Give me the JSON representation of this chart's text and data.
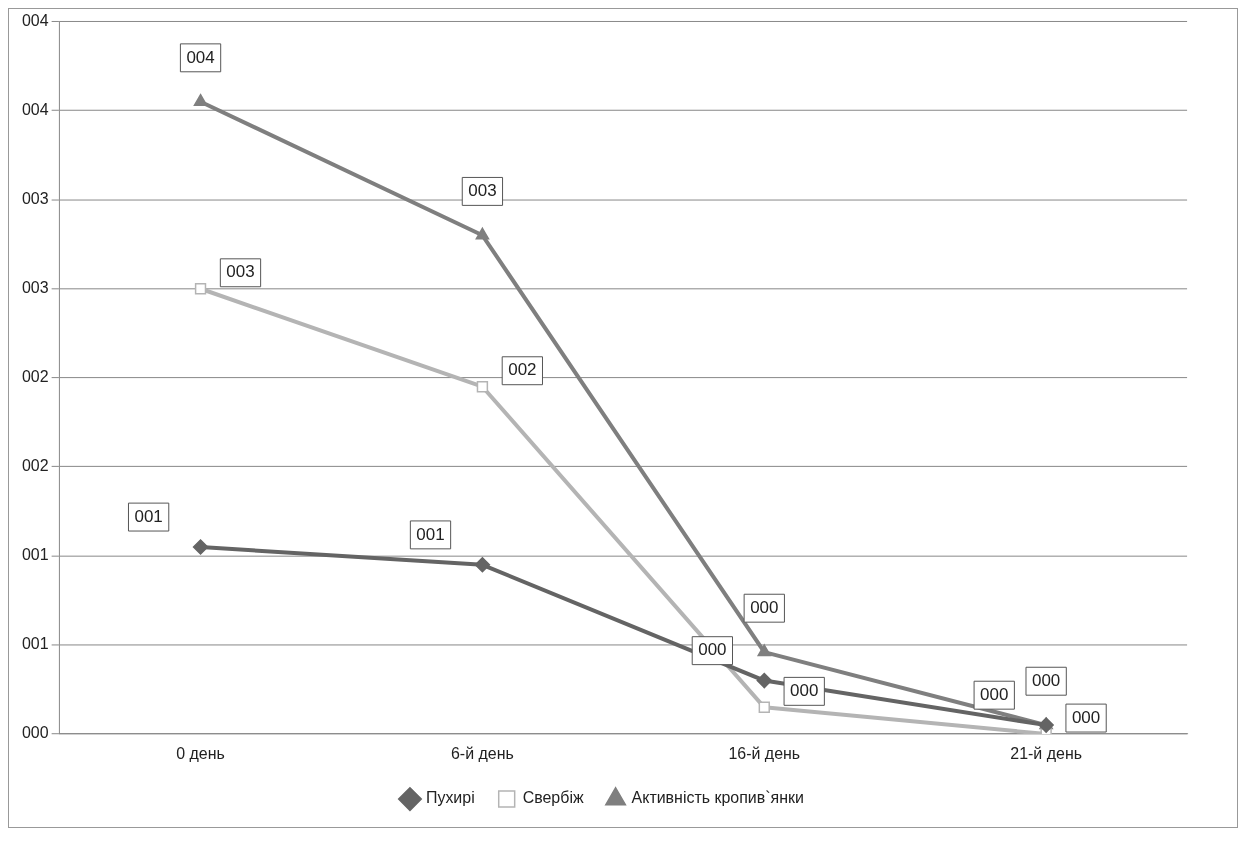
{
  "chart_data": {
    "type": "line",
    "categories": [
      "0 день",
      "6-й день",
      "16-й день",
      "21-й день"
    ],
    "series": [
      {
        "name": "Пухирі",
        "color": "#646464",
        "marker": "diamond",
        "values": [
          1.05,
          0.95,
          0.3,
          0.05
        ],
        "value_labels": [
          "001",
          "001",
          "000",
          "000"
        ]
      },
      {
        "name": "Свербіж",
        "color": "#b4b4b4",
        "marker": "square",
        "values": [
          2.5,
          1.95,
          0.15,
          0.0
        ],
        "value_labels": [
          "003",
          "002",
          "000",
          "000"
        ]
      },
      {
        "name": "Активність кропив`янки",
        "color": "#7f7f7f",
        "marker": "triangle",
        "values": [
          3.55,
          2.8,
          0.46,
          0.05
        ],
        "value_labels": [
          "004",
          "003",
          "000",
          "000"
        ]
      }
    ],
    "ylim": [
      0,
      4
    ],
    "yticks": [
      {
        "value": 0,
        "label": "000"
      },
      {
        "value": 0.5,
        "label": "001"
      },
      {
        "value": 1,
        "label": "001"
      },
      {
        "value": 1.5,
        "label": "002"
      },
      {
        "value": 2,
        "label": "002"
      },
      {
        "value": 2.5,
        "label": "003"
      },
      {
        "value": 3,
        "label": "003"
      },
      {
        "value": 3.5,
        "label": "004"
      },
      {
        "value": 4,
        "label": "004"
      }
    ],
    "grid": "y",
    "legend": "bottom"
  }
}
